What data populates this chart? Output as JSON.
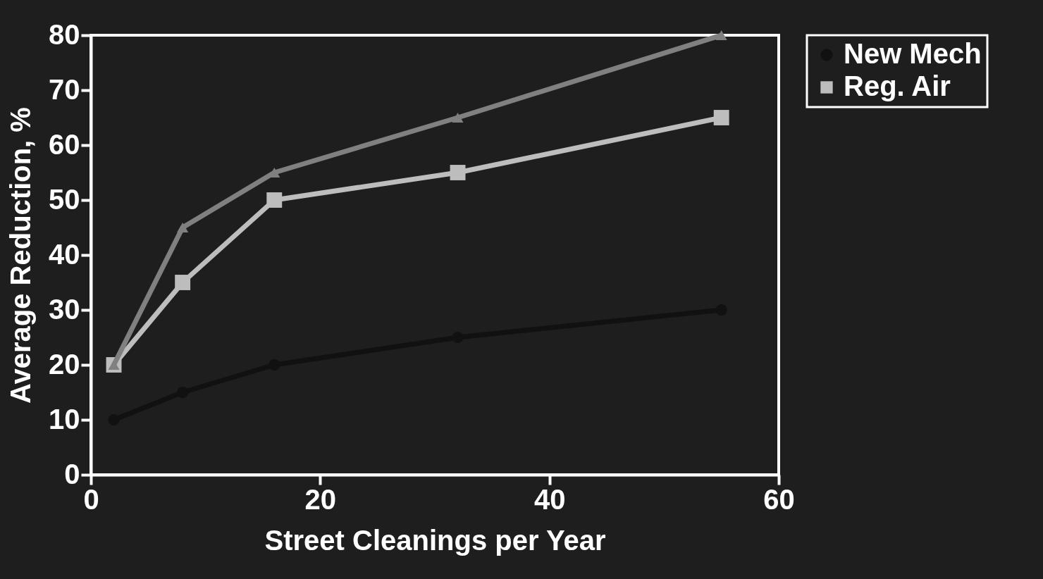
{
  "chart_data": {
    "type": "line",
    "xlabel": "Street Cleanings per Year",
    "ylabel": "Average Reduction, %",
    "x": [
      2,
      8,
      16,
      32,
      55
    ],
    "series": [
      {
        "name": "New Mech",
        "color": "#111111",
        "marker": "circle",
        "values": [
          10,
          15,
          20,
          25,
          30
        ]
      },
      {
        "name": "Reg. Air",
        "color": "#bdbdbd",
        "marker": "square",
        "values": [
          20,
          35,
          50,
          55,
          65
        ]
      },
      {
        "color": "#808080",
        "marker": "triangle",
        "values": [
          20,
          45,
          55,
          65,
          80
        ]
      }
    ],
    "xlim": [
      0,
      60
    ],
    "xticks": [
      0,
      20,
      40,
      60
    ],
    "ylim": [
      0,
      80
    ],
    "yticks": [
      0,
      10,
      20,
      30,
      40,
      50,
      60,
      70,
      80
    ],
    "grid": false,
    "legend": "right"
  }
}
